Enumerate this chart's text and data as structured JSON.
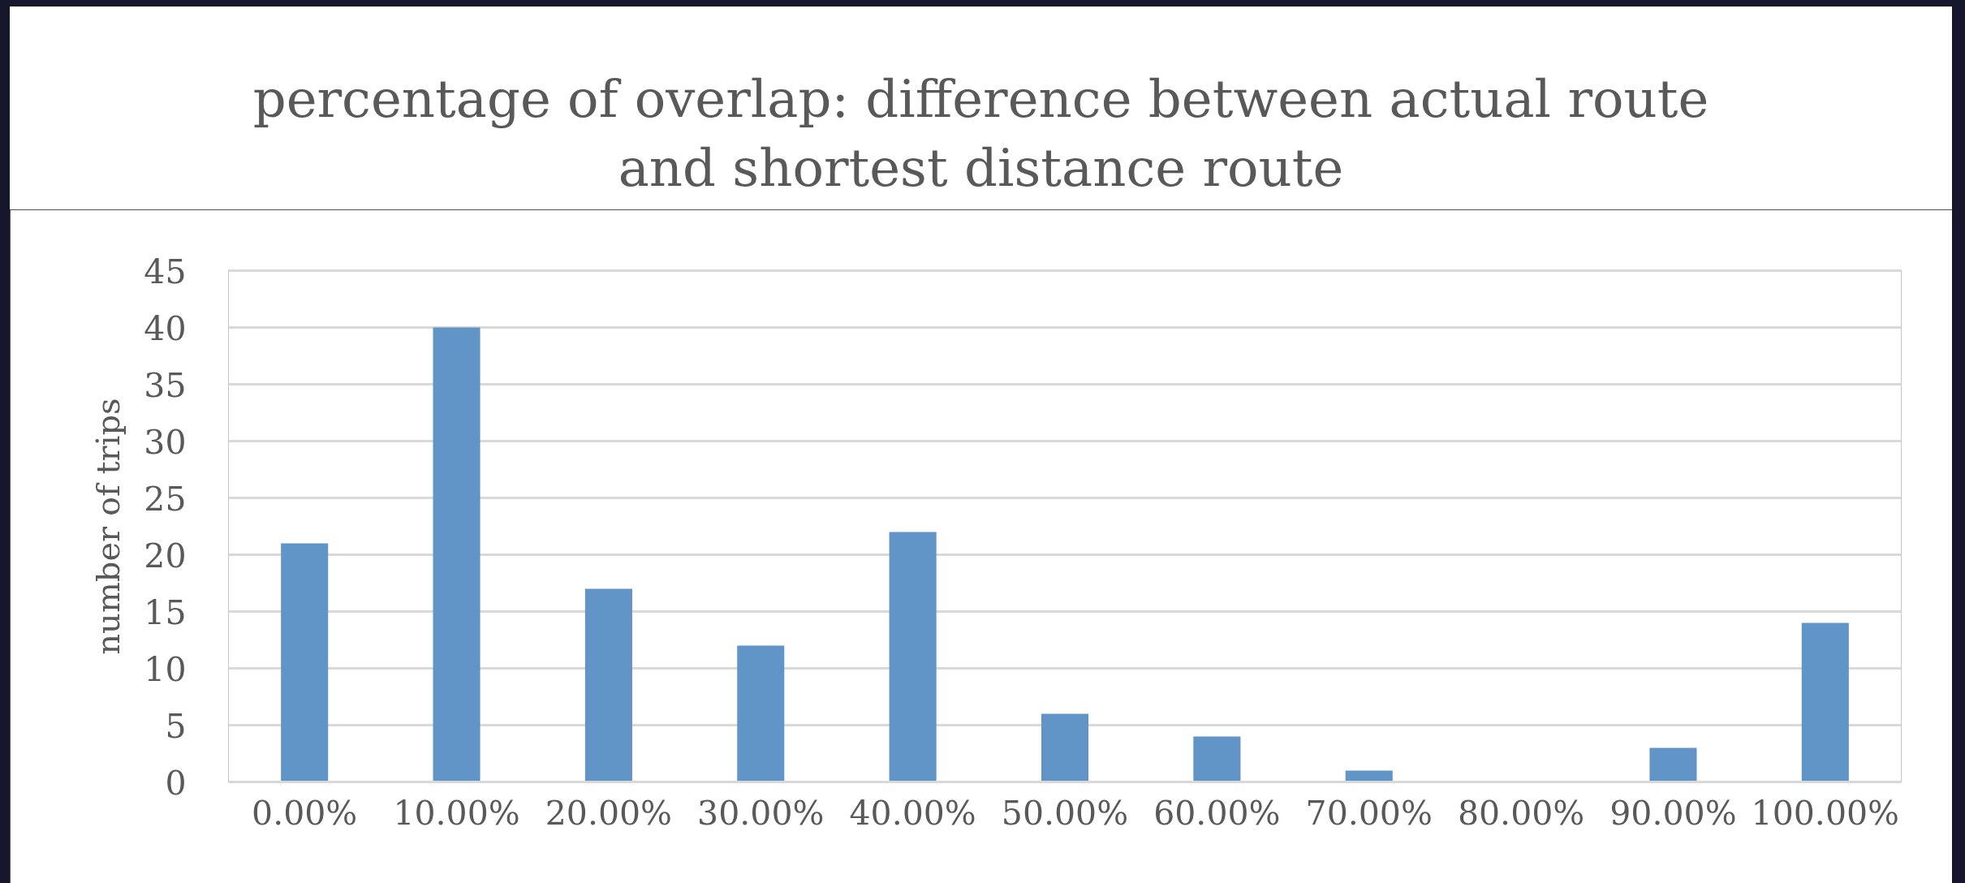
{
  "chart_data": {
    "type": "bar",
    "title": "percentage of overlap: difference between actual route and shortest distance route",
    "ylabel": "number of trips",
    "categories": [
      "0.00%",
      "10.00%",
      "20.00%",
      "30.00%",
      "40.00%",
      "50.00%",
      "60.00%",
      "70.00%",
      "80.00%",
      "90.00%",
      "100.00%"
    ],
    "values": [
      21,
      40,
      17,
      12,
      22,
      6,
      4,
      1,
      0,
      3,
      14
    ],
    "color": "#6195c8",
    "ylim": [
      0,
      45
    ],
    "yticks": [
      0,
      5,
      10,
      15,
      20,
      25,
      30,
      35,
      40,
      45
    ],
    "grid": "y"
  }
}
